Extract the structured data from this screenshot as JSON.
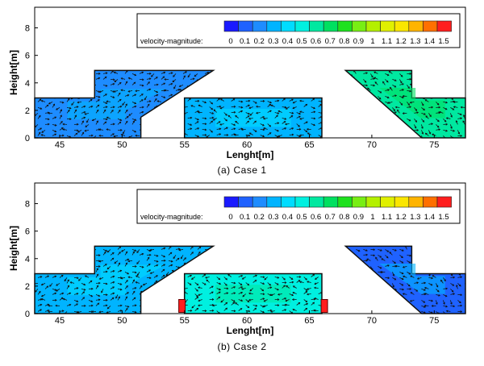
{
  "chart_data": [
    {
      "type": "contour",
      "title": "",
      "caption": "(a)  Case  1",
      "xlabel": "Lenght[m]",
      "ylabel": "Height[m]",
      "xlim": [
        43,
        77.5
      ],
      "ylim": [
        0,
        9.5
      ],
      "x_ticks": [
        45,
        50,
        55,
        60,
        65,
        70,
        75
      ],
      "y_ticks": [
        0,
        2,
        4,
        6,
        8
      ],
      "legend": {
        "title": "velocity-magnitude:",
        "placement": "top-right",
        "values": [
          0,
          0.1,
          0.2,
          0.3,
          0.4,
          0.5,
          0.6,
          0.7,
          0.8,
          0.9,
          1,
          1.1,
          1.2,
          1.3,
          1.4,
          1.5
        ],
        "labels": [
          "0",
          "0.1",
          "0.2",
          "0.3",
          "0.4",
          "0.5",
          "0.6",
          "0.7",
          "0.8",
          "0.9",
          "1",
          "1.1",
          "1.2",
          "1.3",
          "1.4",
          "1.5"
        ],
        "colors": [
          "#1a1aff",
          "#1f62ff",
          "#1e8cff",
          "#00b4ff",
          "#00dcff",
          "#00f0e0",
          "#00e8a0",
          "#00e060",
          "#1ee11e",
          "#78ee14",
          "#b4f000",
          "#e0f000",
          "#fae600",
          "#ffb400",
          "#ff7000",
          "#ff1e1e"
        ]
      },
      "regions": [
        {
          "name": "left-ramp",
          "outline": [
            [
              43,
              0
            ],
            [
              43,
              2.9
            ],
            [
              47.8,
              2.9
            ],
            [
              47.8,
              4.9
            ],
            [
              57.3,
              4.9
            ],
            [
              51.5,
              1.5
            ],
            [
              51.5,
              0
            ]
          ],
          "speed": 0.2
        },
        {
          "name": "middle-box",
          "outline": [
            [
              55,
              0
            ],
            [
              55,
              2.9
            ],
            [
              66,
              2.9
            ],
            [
              66,
              0
            ]
          ],
          "speed": 0.3
        },
        {
          "name": "right-ramp",
          "outline": [
            [
              67.9,
              4.9
            ],
            [
              73.2,
              4.9
            ],
            [
              73.2,
              2.9
            ],
            [
              77.5,
              2.9
            ],
            [
              77.5,
              0
            ],
            [
              74,
              0
            ]
          ],
          "speed": 0.55
        }
      ],
      "vents": []
    },
    {
      "type": "contour",
      "title": "",
      "caption": "(b)  Case  2",
      "xlabel": "Lenght[m]",
      "ylabel": "Height[m]",
      "xlim": [
        43,
        77.5
      ],
      "ylim": [
        0,
        9.5
      ],
      "x_ticks": [
        45,
        50,
        55,
        60,
        65,
        70,
        75
      ],
      "y_ticks": [
        0,
        2,
        4,
        6,
        8
      ],
      "legend": {
        "title": "velocity-magnitude:",
        "placement": "top-right",
        "values": [
          0,
          0.1,
          0.2,
          0.3,
          0.4,
          0.5,
          0.6,
          0.7,
          0.8,
          0.9,
          1,
          1.1,
          1.2,
          1.3,
          1.4,
          1.5
        ],
        "labels": [
          "0",
          "0.1",
          "0.2",
          "0.3",
          "0.4",
          "0.5",
          "0.6",
          "0.7",
          "0.8",
          "0.9",
          "1",
          "1.1",
          "1.2",
          "1.3",
          "1.4",
          "1.5"
        ],
        "colors": [
          "#1a1aff",
          "#1f62ff",
          "#1e8cff",
          "#00b4ff",
          "#00dcff",
          "#00f0e0",
          "#00e8a0",
          "#00e060",
          "#1ee11e",
          "#78ee14",
          "#b4f000",
          "#e0f000",
          "#fae600",
          "#ffb400",
          "#ff7000",
          "#ff1e1e"
        ]
      },
      "regions": [
        {
          "name": "left-ramp",
          "outline": [
            [
              43,
              0
            ],
            [
              43,
              2.9
            ],
            [
              47.8,
              2.9
            ],
            [
              47.8,
              4.9
            ],
            [
              57.3,
              4.9
            ],
            [
              51.5,
              1.5
            ],
            [
              51.5,
              0
            ]
          ],
          "speed": 0.35
        },
        {
          "name": "middle-box",
          "outline": [
            [
              55,
              0
            ],
            [
              55,
              2.9
            ],
            [
              66,
              2.9
            ],
            [
              66,
              0
            ]
          ],
          "speed": 0.45
        },
        {
          "name": "right-ramp",
          "outline": [
            [
              67.9,
              4.9
            ],
            [
              73.2,
              4.9
            ],
            [
              73.2,
              2.9
            ],
            [
              77.5,
              2.9
            ],
            [
              77.5,
              0
            ],
            [
              74,
              0
            ]
          ],
          "speed": 0.15
        }
      ],
      "vents": [
        {
          "x": 54.8,
          "y": 0.5,
          "speed": 1.5
        },
        {
          "x": 66.2,
          "y": 0.5,
          "speed": 1.5
        }
      ]
    }
  ]
}
